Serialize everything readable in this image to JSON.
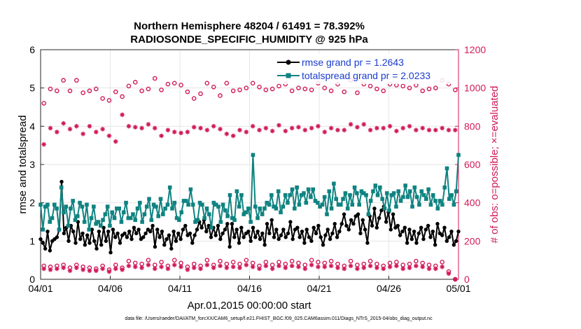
{
  "colors": {
    "rmse": "#000000",
    "spread": "#0f8381",
    "obs": "#d11a5a",
    "grid": "#e6e6e6",
    "legendText": "#1a3ccf"
  },
  "chart_data": {
    "type": "line",
    "title": "Northern Hemisphere 48204 / 61491 = 78.392%",
    "subtitle": "RADIOSONDE_SPECIFIC_HUMIDITY @ 925 hPa",
    "xlabel": "Apr.01,2015 00:00:00 start",
    "ylabel_left": "rmse and totalspread",
    "ylabel_right": "# of obs: o=possible; ×=evaluated",
    "xlim": [
      0,
      30
    ],
    "ylim_left": [
      0,
      6
    ],
    "ylim_right": [
      0,
      1200
    ],
    "x_ticks": [
      0,
      5,
      10,
      15,
      20,
      25,
      30
    ],
    "x_tick_labels": [
      "04/01",
      "04/06",
      "04/11",
      "04/16",
      "04/21",
      "04/26",
      "05/01"
    ],
    "y_left_ticks": [
      "0",
      "1",
      "2",
      "3",
      "4",
      "5",
      "6"
    ],
    "y_right_ticks": [
      "0",
      "200",
      "400",
      "600",
      "800",
      "1000",
      "1200"
    ],
    "legend": {
      "position": "top-right",
      "rmse_label": "rmse grand pr = 1.2643",
      "spread_label": "totalspread grand pr = 2.0233"
    },
    "footnote": "data file: /Users/raeder/DAI/ATM_forcXX/CAM6_setup/f.e21.FHIST_BGC.f09_025.CAM6assim.011/Diags_NTrS_2015-04/obs_diag_output.nc",
    "series": [
      {
        "name": "rmse",
        "axis": "left",
        "values": [
          1.05,
          0.95,
          0.8,
          1.25,
          0.75,
          1.0,
          1.05,
          1.1,
          1.3,
          2.55,
          1.2,
          1.35,
          1.0,
          1.4,
          1.25,
          0.95,
          1.5,
          1.05,
          1.2,
          0.9,
          1.15,
          0.95,
          1.3,
          1.0,
          0.8,
          1.25,
          0.9,
          1.35,
          1.0,
          1.25,
          0.7,
          1.3,
          1.1,
          1.2,
          0.95,
          1.15,
          1.2,
          1.1,
          1.25,
          1.05,
          1.35,
          1.2,
          1.3,
          1.05,
          1.1,
          1.2,
          1.3,
          1.25,
          1.4,
          0.85,
          1.3,
          1.1,
          1.25,
          0.9,
          1.05,
          1.15,
          0.8,
          1.25,
          1.0,
          1.2,
          1.05,
          1.3,
          1.4,
          1.15,
          1.2,
          0.95,
          1.15,
          1.3,
          1.5,
          1.35,
          1.55,
          1.25,
          1.4,
          1.1,
          1.35,
          1.15,
          1.4,
          1.05,
          1.2,
          1.3,
          1.45,
          0.85,
          1.45,
          1.1,
          1.3,
          0.95,
          1.35,
          1.1,
          1.2,
          1.25,
          1.0,
          1.35,
          1.1,
          1.25,
          1.05,
          1.2,
          0.9,
          1.45,
          1.2,
          1.55,
          1.1,
          1.3,
          1.05,
          1.15,
          1.3,
          1.1,
          1.2,
          1.5,
          1.05,
          1.3,
          1.35,
          1.1,
          1.25,
          0.95,
          1.3,
          1.1,
          1.0,
          1.35,
          1.2,
          1.4,
          1.1,
          0.9,
          1.15,
          1.3,
          1.05,
          1.2,
          1.45,
          1.1,
          1.25,
          1.45,
          1.7,
          1.4,
          1.3,
          1.55,
          1.45,
          1.65,
          1.7,
          1.2,
          1.55,
          1.3,
          0.95,
          1.65,
          1.4,
          1.85,
          1.35,
          1.6,
          1.8,
          1.9,
          1.5,
          1.75,
          1.3,
          1.7,
          1.35,
          1.4,
          1.15,
          1.25,
          1.35,
          0.95,
          1.3,
          1.05,
          1.25,
          0.95,
          1.2,
          1.35,
          1.05,
          1.3,
          1.4,
          1.1,
          1.25,
          0.9,
          1.45,
          1.2,
          1.15,
          1.35,
          1.0,
          1.1,
          1.25,
          0.9,
          1.0,
          1.25
        ]
      },
      {
        "name": "totalspread",
        "axis": "left",
        "values": [
          1.95,
          1.3,
          1.9,
          1.95,
          1.5,
          1.6,
          1.95,
          1.85,
          1.3,
          2.4,
          1.75,
          1.9,
          1.4,
          1.85,
          2.05,
          1.55,
          1.65,
          2.0,
          1.9,
          1.5,
          1.95,
          1.3,
          1.6,
          1.9,
          1.45,
          1.5,
          1.4,
          1.55,
          1.7,
          1.9,
          1.4,
          1.75,
          1.6,
          1.85,
          1.85,
          1.5,
          1.75,
          2.0,
          1.6,
          1.6,
          1.7,
          1.55,
          1.85,
          2.0,
          1.5,
          1.7,
          1.9,
          2.1,
          1.55,
          1.95,
          1.9,
          1.65,
          2.1,
          1.7,
          1.85,
          1.95,
          2.4,
          1.85,
          2.0,
          1.6,
          1.55,
          1.75,
          2.05,
          2.05,
          1.95,
          2.35,
          1.95,
          1.5,
          1.55,
          2.0,
          1.95,
          1.6,
          1.85,
          1.7,
          1.35,
          2.0,
          1.95,
          1.9,
          1.5,
          1.95,
          1.8,
          1.65,
          2.2,
          1.6,
          1.55,
          2.3,
          1.9,
          2.2,
          1.7,
          1.75,
          1.85,
          1.5,
          3.25,
          1.9,
          1.6,
          1.85,
          1.7,
          1.85,
          2.0,
          1.95,
          2.2,
          1.9,
          1.85,
          2.3,
          1.75,
          1.9,
          2.2,
          2.0,
          2.2,
          2.35,
          1.85,
          2.4,
          1.95,
          2.2,
          2.25,
          2.0,
          2.35,
          2.15,
          2.35,
          2.05,
          2.0,
          1.9,
          1.95,
          2.15,
          1.7,
          2.3,
          1.85,
          2.5,
          2.1,
          1.95,
          1.95,
          2.1,
          2.25,
          1.85,
          2.2,
          1.95,
          2.4,
          2.25,
          1.95,
          2.3,
          2.25,
          2.2,
          1.7,
          2.05,
          2.3,
          2.45,
          2.2,
          2.4,
          2.1,
          1.85,
          2.25,
          1.8,
          2.2,
          2.25,
          1.9,
          2.3,
          2.05,
          2.15,
          2.45,
          2.15,
          2.3,
          1.9,
          2.4,
          2.15,
          1.95,
          2.3,
          2.2,
          2.1,
          2.35,
          1.95,
          2.2,
          2.05,
          1.85,
          2.05,
          1.95,
          2.4,
          2.9,
          2.1,
          2.2,
          1.95,
          2.3,
          3.25
        ]
      },
      {
        "name": "obs possible",
        "axis": "right",
        "marker": "circle",
        "values": [
          920,
          995,
          985,
          1040,
          985,
          1040,
          975,
          985,
          995,
          945,
          935,
          980,
          955,
          1010,
          1030,
          985,
          995,
          1050,
          990,
          1020,
          1025,
          1015,
          980,
          945,
          970,
          1025,
          1005,
          960,
          1025,
          985,
          990,
          1000,
          1025,
          1005,
          990,
          995,
          1010,
          1020,
          985,
          1000,
          995,
          990,
          1025,
          1000,
          985,
          1020,
          980,
          1040,
          975,
          1020,
          1010,
          995,
          985,
          1020,
          1015,
          1010,
          1000,
          1015,
          985,
          995,
          1000,
          1040,
          1020,
          990
        ]
      },
      {
        "name": "obs evaluated",
        "axis": "right",
        "marker": "asterisk",
        "values": [
          705,
          790,
          770,
          815,
          785,
          800,
          760,
          800,
          770,
          785,
          750,
          720,
          860,
          800,
          795,
          790,
          810,
          790,
          750,
          780,
          770,
          765,
          770,
          795,
          790,
          780,
          800,
          785,
          760,
          750,
          780,
          770,
          800,
          780,
          790,
          775,
          805,
          775,
          790,
          795,
          780,
          790,
          800,
          770,
          790,
          780,
          780,
          810,
          795,
          810,
          780,
          790,
          790,
          800,
          775,
          790,
          800,
          780,
          790,
          780,
          780,
          790,
          780,
          780
        ]
      },
      {
        "name": "obs possible (low)",
        "axis": "right",
        "marker": "circle",
        "values": [
          70,
          65,
          70,
          75,
          60,
          75,
          65,
          60,
          55,
          70,
          50,
          75,
          60,
          95,
          85,
          80,
          100,
          75,
          90,
          70,
          100,
          85,
          65,
          80,
          70,
          100,
          75,
          95,
          80,
          90,
          80,
          100,
          85,
          70,
          90,
          75,
          90,
          80,
          95,
          85,
          75,
          100,
          90,
          85,
          95,
          80,
          70,
          95,
          75,
          80,
          95,
          80,
          70,
          85,
          90,
          75,
          80,
          95,
          85,
          75,
          70,
          90,
          40,
          0
        ]
      },
      {
        "name": "obs evaluated (low)",
        "axis": "right",
        "marker": "asterisk",
        "values": [
          55,
          50,
          55,
          60,
          45,
          60,
          50,
          45,
          45,
          55,
          40,
          55,
          50,
          70,
          65,
          60,
          75,
          55,
          65,
          55,
          75,
          65,
          50,
          60,
          55,
          75,
          60,
          70,
          60,
          65,
          60,
          75,
          65,
          55,
          70,
          55,
          70,
          60,
          70,
          65,
          55,
          75,
          65,
          65,
          70,
          60,
          55,
          70,
          55,
          60,
          70,
          60,
          55,
          65,
          70,
          55,
          60,
          70,
          65,
          55,
          55,
          65,
          30,
          0
        ]
      }
    ]
  }
}
